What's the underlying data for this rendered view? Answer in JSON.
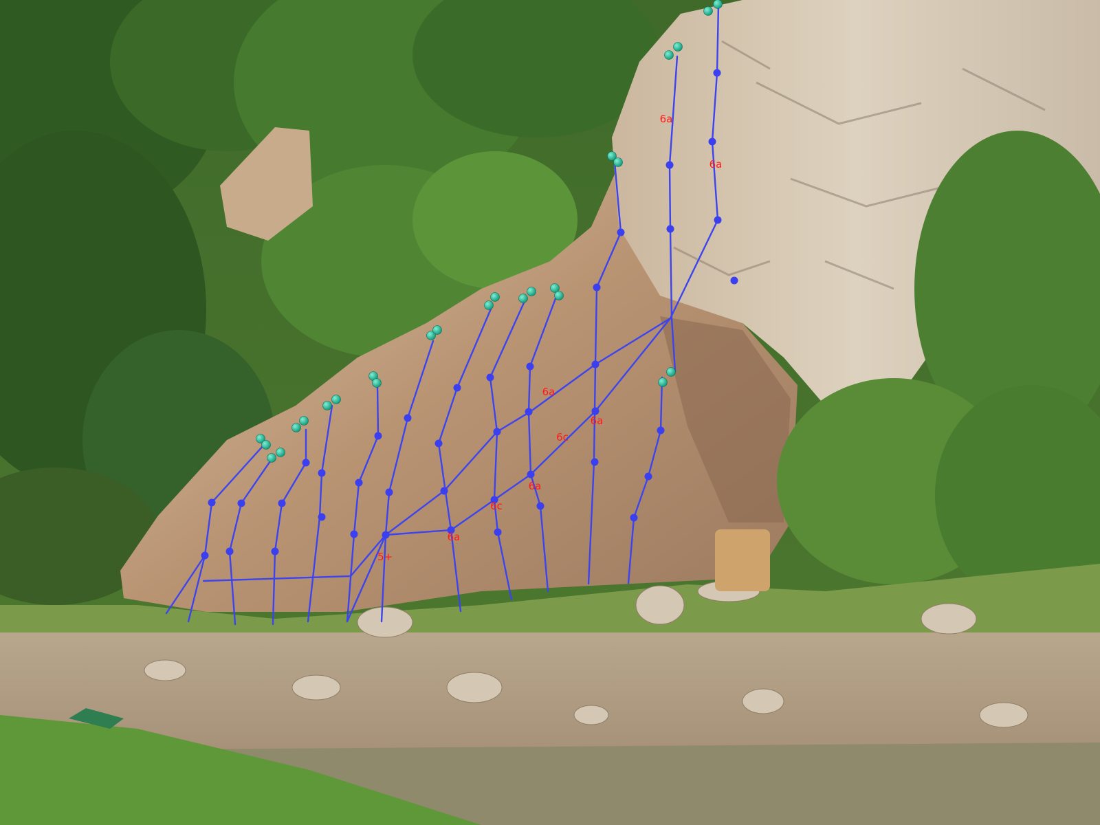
{
  "image": {
    "subject": "topo"
  },
  "colors": {
    "route_line": "#3d44ee",
    "bolt": "#3a3ff0",
    "anchor": "#11a88a",
    "anchor_highlight": "#6fe3c8",
    "grade_text": "#ff1a1a"
  },
  "grades": [
    "6a",
    "6a",
    "6a",
    "6a",
    "6c",
    "6a",
    "6c",
    "6a",
    "6a",
    "5+"
  ]
}
